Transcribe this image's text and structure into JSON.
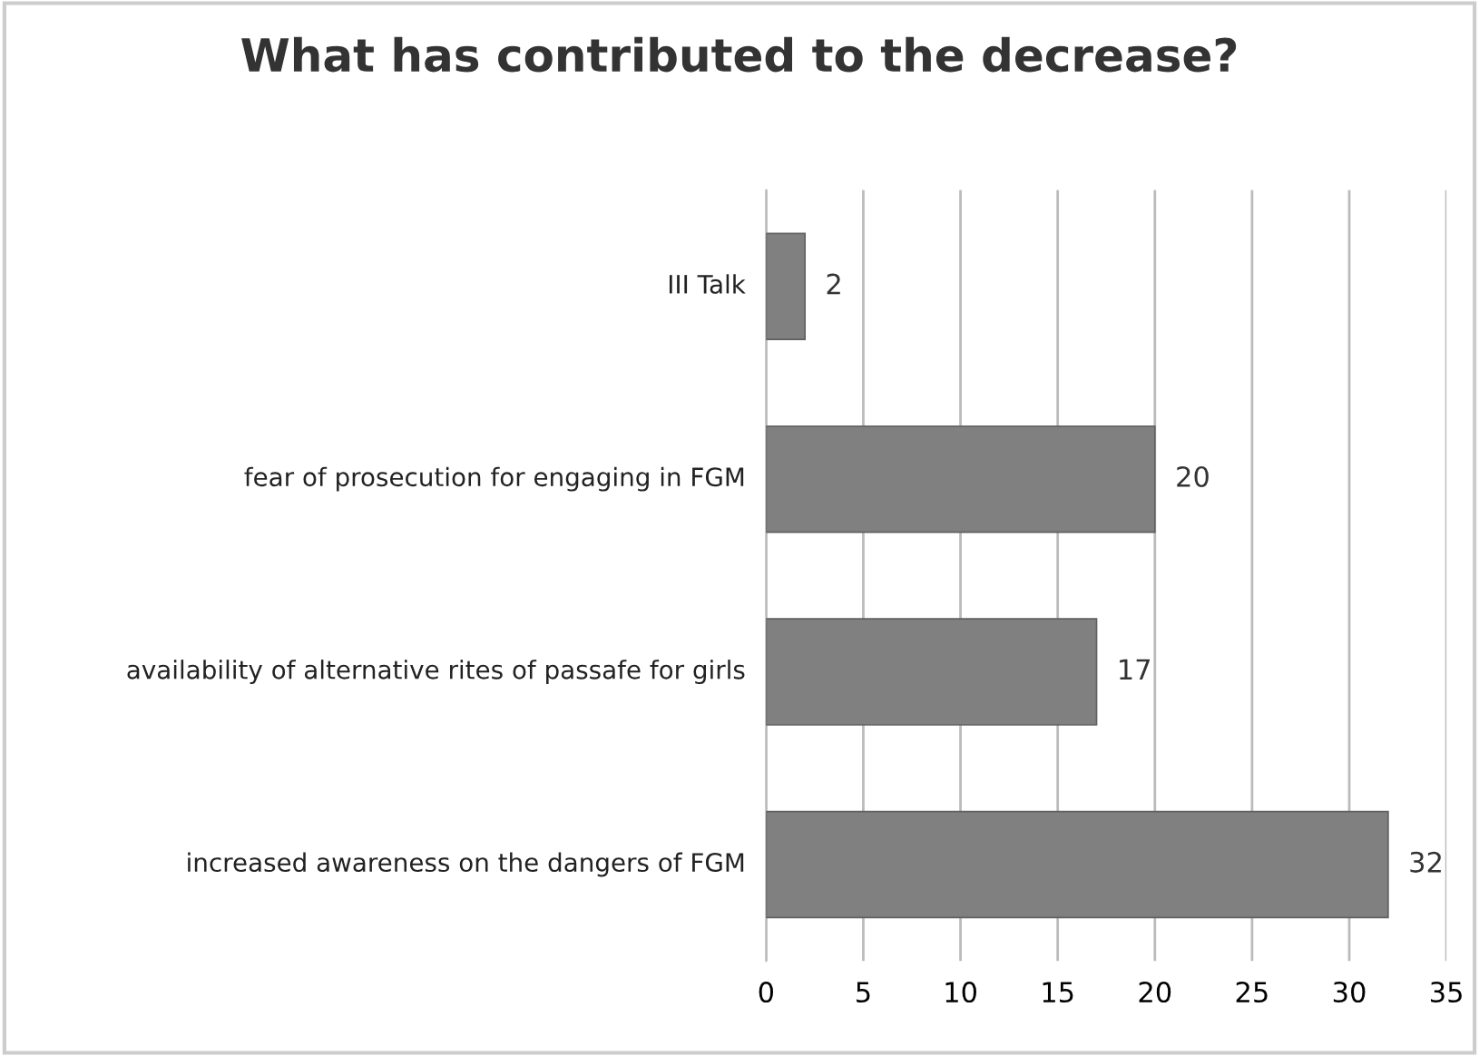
{
  "chart_data": {
    "type": "bar",
    "orientation": "horizontal",
    "title": "What has contributed to the decrease?",
    "categories": [
      "III Talk",
      "fear of prosecution for engaging in FGM",
      "availability of alternative rites of passafe for girls",
      "increased awareness on the dangers of FGM"
    ],
    "values": [
      2,
      20,
      17,
      32
    ],
    "color": "#808080",
    "data_labels": true,
    "xlim": [
      0,
      35
    ],
    "xticks": [
      0,
      5,
      10,
      15,
      20,
      25,
      30,
      35
    ],
    "grid": "x"
  }
}
